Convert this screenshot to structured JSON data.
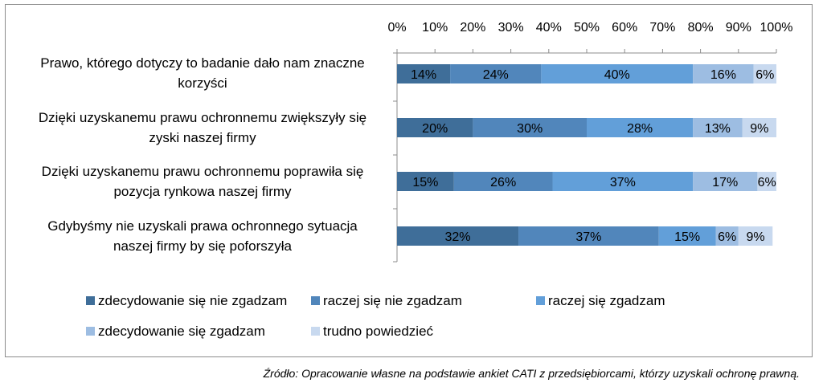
{
  "chart_data": {
    "type": "bar",
    "orientation": "horizontal-stacked-100",
    "categories": [
      "Prawo, którego dotyczy to badanie dało nam znaczne korzyści",
      "Dzięki uzyskanemu prawu ochronnemu zwiększyły się zyski naszej firmy",
      "Dzięki uzyskanemu prawu ochronnemu poprawiła się pozycja rynkowa naszej firmy",
      "Gdybyśmy nie uzyskali prawa ochronnego sytuacja naszej firmy by się poforszyła"
    ],
    "category_lines": [
      [
        "Prawo, którego dotyczy to badanie dało nam znaczne",
        "korzyści"
      ],
      [
        "Dzięki uzyskanemu prawu ochronnemu zwiększyły się",
        "zyski naszej firmy"
      ],
      [
        "Dzięki uzyskanemu prawu ochronnemu poprawiła się",
        "pozycja rynkowa naszej firmy"
      ],
      [
        "Gdybyśmy nie uzyskali prawa ochronnego sytuacja",
        "naszej firmy by się poforszyła"
      ]
    ],
    "series": [
      {
        "name": "zdecydowanie się nie zgadzam",
        "color": "#3f6e99",
        "values": [
          14,
          20,
          15,
          32
        ]
      },
      {
        "name": "raczej się nie zgadzam",
        "color": "#5186bb",
        "values": [
          24,
          30,
          26,
          37
        ]
      },
      {
        "name": "raczej się zgadzam",
        "color": "#629fd9",
        "values": [
          40,
          28,
          37,
          15
        ]
      },
      {
        "name": "zdecydowanie się zgadzam",
        "color": "#9dbde2",
        "values": [
          16,
          13,
          17,
          6
        ]
      },
      {
        "name": "trudno powiedzieć",
        "color": "#c8d9ef",
        "values": [
          6,
          9,
          6,
          9
        ]
      }
    ],
    "xlim": [
      0,
      100
    ],
    "x_ticks": [
      "0%",
      "10%",
      "20%",
      "30%",
      "40%",
      "50%",
      "60%",
      "70%",
      "80%",
      "90%",
      "100%"
    ],
    "value_suffix": "%",
    "axis_position": "top",
    "grid": false,
    "legend_position": "bottom"
  },
  "source_note": "Źródło: Opracowanie własne na podstawie ankiet CATI z przedsiębiorcami, którzy uzyskali ochronę prawną."
}
